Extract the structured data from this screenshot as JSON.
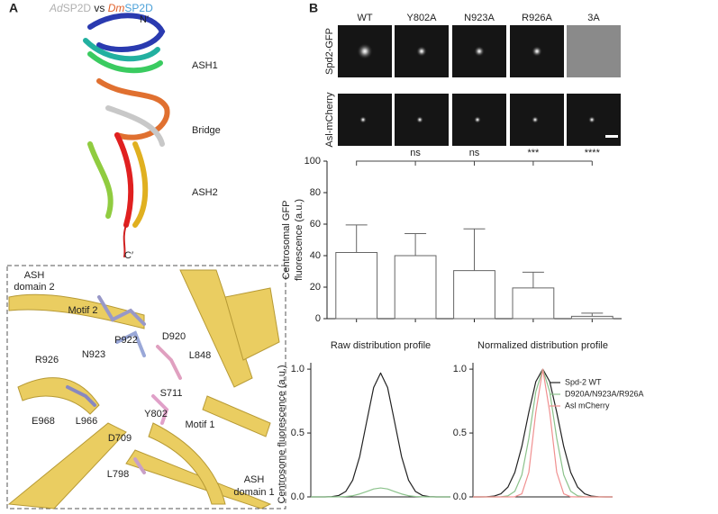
{
  "panels": [
    "A",
    "B"
  ],
  "structure": {
    "title": [
      {
        "text": "Ad",
        "italic": true,
        "color": "#b0b0b0"
      },
      {
        "text": "SP2D",
        "italic": false,
        "color": "#b0b0b0"
      },
      {
        "text": " vs ",
        "italic": false,
        "color": "#222222"
      },
      {
        "text": "Dm",
        "italic": true,
        "color": "#e0602a"
      },
      {
        "text": "SP2D",
        "italic": false,
        "color": "#4aa0d8"
      }
    ],
    "labels": [
      {
        "text": "N′",
        "color": "#222222"
      },
      {
        "text": "ASH1",
        "color": "#222222"
      },
      {
        "text": "Bridge",
        "color": "#222222"
      },
      {
        "text": "ASH2",
        "color": "#222222"
      },
      {
        "text": "C′",
        "color": "#222222"
      }
    ]
  },
  "detail": {
    "labels": [
      {
        "text": "ASH",
        "color": "#222222"
      },
      {
        "text": "domain 2",
        "color": "#222222"
      },
      {
        "text": "Motif 2",
        "color": "#7f7fb8"
      },
      {
        "text": "P922",
        "color": "#4a7ab8"
      },
      {
        "text": "D920",
        "color": "#d8322a"
      },
      {
        "text": "L848",
        "color": "#4a9ac8"
      },
      {
        "text": "R926",
        "color": "#d8322a"
      },
      {
        "text": "N923",
        "color": "#d8322a"
      },
      {
        "text": "S711",
        "color": "#333333"
      },
      {
        "text": "E968",
        "color": "#d8322a"
      },
      {
        "text": "L966",
        "color": "#4a9ac8"
      },
      {
        "text": "Y802",
        "color": "#d8322a"
      },
      {
        "text": "D709",
        "color": "#d8322a"
      },
      {
        "text": "Motif 1",
        "color": "#e07aa8"
      },
      {
        "text": "L798",
        "color": "#c09ac0"
      },
      {
        "text": "ASH",
        "color": "#222222"
      },
      {
        "text": "domain 1",
        "color": "#222222"
      }
    ]
  },
  "microscopy": {
    "rows": [
      "Spd2-GFP",
      "Asl-mCherry"
    ]
  },
  "chart_data": [
    {
      "type": "bar",
      "categories": [
        "WT",
        "Y802A",
        "N923A",
        "R926A",
        "3A"
      ],
      "values": [
        42,
        40,
        30.5,
        19.5,
        1.5
      ],
      "errors": [
        17.5,
        14,
        26.5,
        10,
        2
      ],
      "significance": [
        null,
        "ns",
        "ns",
        "***",
        "****"
      ],
      "ylabel": [
        "Centrosomal GFP",
        "fluorescence (a.u.)"
      ],
      "ylim": [
        0,
        100
      ],
      "yticks": [
        0,
        20,
        40,
        60,
        80,
        100
      ],
      "color": "#ffffff",
      "edge": "#666666"
    },
    {
      "type": "line",
      "title": "Raw distribution profile",
      "ylabel": "Centrosome fluorescence (a.u.)",
      "x": [
        -10,
        -9,
        -8,
        -7,
        -6,
        -5,
        -4,
        -3,
        -2,
        -1,
        0,
        1,
        2,
        3,
        4,
        5,
        6,
        7,
        8,
        9,
        10
      ],
      "series": [
        {
          "color": "#222222",
          "values": [
            0,
            0,
            0,
            0.002,
            0.011,
            0.042,
            0.131,
            0.315,
            0.588,
            0.856,
            0.97,
            0.856,
            0.588,
            0.315,
            0.131,
            0.042,
            0.011,
            0.002,
            0,
            0,
            0
          ]
        },
        {
          "color": "#8bc28b",
          "values": [
            0,
            0,
            0,
            0,
            0.001,
            0.003,
            0.009,
            0.023,
            0.042,
            0.062,
            0.07,
            0.062,
            0.042,
            0.023,
            0.009,
            0.003,
            0.001,
            0,
            0,
            0,
            0
          ]
        }
      ],
      "xlim": [
        -10,
        10
      ],
      "ylim": [
        0,
        1.05
      ],
      "yticks": [
        {
          "value": 0,
          "label": "0.0"
        },
        {
          "value": 0.5,
          "label": "0.5"
        },
        {
          "value": 1,
          "label": "1.0"
        }
      ]
    },
    {
      "type": "line",
      "title": "Normalized distribution profile",
      "legend": "upper right",
      "x": [
        -10,
        -9,
        -8,
        -7,
        -6,
        -5,
        -4,
        -3,
        -2,
        -1,
        0,
        1,
        2,
        3,
        4,
        5,
        6,
        7,
        8,
        9,
        10
      ],
      "series": [
        {
          "name": "Spd-2 WT",
          "color": "#222222",
          "values": [
            0,
            0,
            0.001,
            0.006,
            0.024,
            0.076,
            0.192,
            0.395,
            0.662,
            0.902,
            1,
            0.902,
            0.662,
            0.395,
            0.192,
            0.076,
            0.024,
            0.006,
            0.001,
            0,
            0
          ]
        },
        {
          "name": "D920A/N923A/R926A",
          "color": "#8bc28b",
          "values": [
            0,
            0,
            0,
            0,
            0.001,
            0.008,
            0.044,
            0.172,
            0.458,
            0.823,
            1,
            0.823,
            0.458,
            0.172,
            0.044,
            0.008,
            0.001,
            0,
            0,
            0,
            0
          ]
        },
        {
          "name": "Asl mCherry",
          "color": "#f09090",
          "values": [
            0,
            0,
            0,
            0,
            0,
            0,
            0.001,
            0.024,
            0.192,
            0.662,
            1,
            0.662,
            0.192,
            0.024,
            0.001,
            0,
            0,
            0,
            0,
            0,
            0
          ]
        }
      ],
      "xlim": [
        -10,
        10
      ],
      "ylim": [
        0,
        1.05
      ],
      "yticks": [
        {
          "value": 0,
          "label": "0.0"
        },
        {
          "value": 0.5,
          "label": "0.5"
        },
        {
          "value": 1,
          "label": "1.0"
        }
      ]
    }
  ]
}
